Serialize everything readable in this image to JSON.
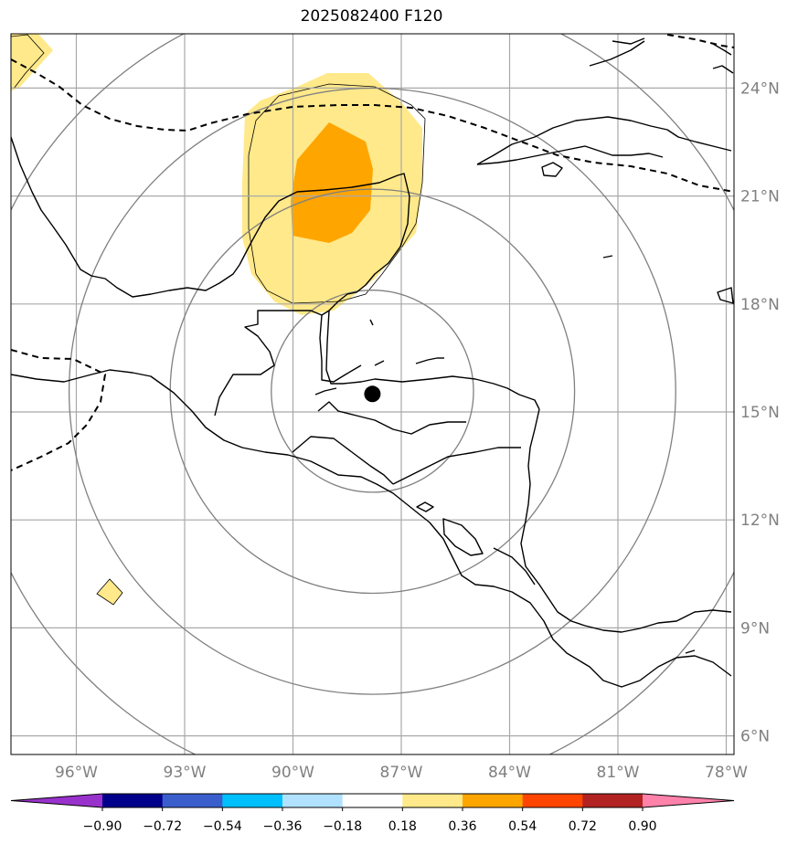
{
  "title": "2025082400 F120",
  "map": {
    "lon_ticks": [
      {
        "value": -96,
        "label": "96°W"
      },
      {
        "value": -93,
        "label": "93°W"
      },
      {
        "value": -90,
        "label": "90°W"
      },
      {
        "value": -87,
        "label": "87°W"
      },
      {
        "value": -84,
        "label": "84°W"
      },
      {
        "value": -81,
        "label": "81°W"
      },
      {
        "value": -78,
        "label": "78°W"
      }
    ],
    "lat_ticks": [
      {
        "value": 24,
        "label": "24°N"
      },
      {
        "value": 21,
        "label": "21°N"
      },
      {
        "value": 18,
        "label": "18°N"
      },
      {
        "value": 15,
        "label": "15°N"
      },
      {
        "value": 12,
        "label": "12°N"
      },
      {
        "value": 9,
        "label": "9°N"
      },
      {
        "value": 6,
        "label": "6°N"
      }
    ],
    "center_marker": {
      "lon": -87.8,
      "lat": 15.5
    },
    "range_rings_deg": [
      2.8,
      5.6,
      8.4,
      11.2
    ],
    "fill_colors": {
      "light": "#ffe98a",
      "medium": "#ffa500"
    }
  },
  "colorbar": {
    "ticks": [
      "−0.90",
      "−0.72",
      "−0.54",
      "−0.36",
      "−0.18",
      "0.18",
      "0.36",
      "0.54",
      "0.72",
      "0.90"
    ],
    "colors": [
      "#9932cc",
      "#00008b",
      "#3a5fcd",
      "#00bfff",
      "#b0e2ff",
      "#ffffff",
      "#ffe98a",
      "#ffa500",
      "#ff4500",
      "#b22222",
      "#ff82ab"
    ]
  }
}
